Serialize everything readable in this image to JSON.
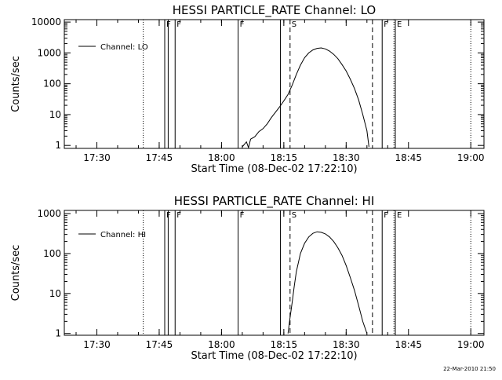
{
  "footer": {
    "timestamp": "22-Mar-2010 21:50"
  },
  "chart_data": [
    {
      "type": "line",
      "title": "HESSI PARTICLE_RATE Channel: LO",
      "xlabel": "Start Time (08-Dec-02 17:22:10)",
      "ylabel": "Counts/sec",
      "yscale": "log",
      "xlim": [
        "17:22:10",
        "19:03:10"
      ],
      "ylim": [
        0.8,
        12000
      ],
      "xticks": [
        "17:30",
        "17:45",
        "18:00",
        "18:15",
        "18:30",
        "18:45",
        "19:00"
      ],
      "yticks": [
        "1",
        "10",
        "100",
        "1000",
        "10000"
      ],
      "legend": {
        "position": "top-left",
        "label": "Channel: LO"
      },
      "series": [
        {
          "name": "Channel: LO",
          "x": [
            "18:05:00",
            "18:06:00",
            "18:06:30",
            "18:07:00",
            "18:08:00",
            "18:09:00",
            "18:10:00",
            "18:11:00",
            "18:12:00",
            "18:13:00",
            "18:14:00",
            "18:15:00",
            "18:16:00",
            "18:17:00",
            "18:18:00",
            "18:19:00",
            "18:20:00",
            "18:21:00",
            "18:22:00",
            "18:23:00",
            "18:24:00",
            "18:25:00",
            "18:26:00",
            "18:27:00",
            "18:28:00",
            "18:29:00",
            "18:30:00",
            "18:31:00",
            "18:32:00",
            "18:33:00",
            "18:34:00",
            "18:35:00",
            "18:35:30"
          ],
          "y": [
            0.9,
            1.3,
            0.85,
            1.6,
            1.9,
            2.8,
            3.5,
            5,
            8,
            12,
            18,
            28,
            45,
            90,
            200,
            400,
            700,
            1000,
            1250,
            1400,
            1450,
            1350,
            1150,
            900,
            650,
            420,
            260,
            140,
            70,
            30,
            10,
            3,
            0.9
          ]
        }
      ],
      "markers": [
        {
          "time": "17:41:10",
          "style": "dotted",
          "label": ""
        },
        {
          "time": "17:46:20",
          "style": "solid",
          "label": "F"
        },
        {
          "time": "17:47:10",
          "style": "solid",
          "label": ""
        },
        {
          "time": "17:48:50",
          "style": "solid",
          "label": "F"
        },
        {
          "time": "18:04:00",
          "style": "solid",
          "label": "F"
        },
        {
          "time": "18:14:10",
          "style": "solid",
          "label": ""
        },
        {
          "time": "18:16:30",
          "style": "dashed",
          "label": "S"
        },
        {
          "time": "18:36:20",
          "style": "dashed",
          "label": ""
        },
        {
          "time": "18:38:40",
          "style": "solid",
          "label": "F"
        },
        {
          "time": "18:41:50",
          "style": "solid",
          "label": "E"
        },
        {
          "time": "18:41:30",
          "style": "dotted",
          "label": ""
        },
        {
          "time": "19:00:00",
          "style": "dotted",
          "label": ""
        }
      ]
    },
    {
      "type": "line",
      "title": "HESSI PARTICLE_RATE Channel: HI",
      "xlabel": "Start Time (08-Dec-02 17:22:10)",
      "ylabel": "Counts/sec",
      "yscale": "log",
      "xlim": [
        "17:22:10",
        "19:03:10"
      ],
      "ylim": [
        0.9,
        1200
      ],
      "xticks": [
        "17:30",
        "17:45",
        "18:00",
        "18:15",
        "18:30",
        "18:45",
        "19:00"
      ],
      "yticks": [
        "1",
        "10",
        "100",
        "1000"
      ],
      "legend": {
        "position": "top-left",
        "label": "Channel: HI"
      },
      "series": [
        {
          "name": "Channel: HI",
          "x": [
            "18:16:00",
            "18:16:30",
            "18:17:00",
            "18:17:30",
            "18:18:00",
            "18:19:00",
            "18:20:00",
            "18:21:00",
            "18:22:00",
            "18:23:00",
            "18:24:00",
            "18:25:00",
            "18:26:00",
            "18:27:00",
            "18:28:00",
            "18:29:00",
            "18:30:00",
            "18:31:00",
            "18:32:00",
            "18:33:00",
            "18:34:00",
            "18:35:00"
          ],
          "y": [
            1.0,
            2.5,
            6,
            15,
            35,
            100,
            180,
            260,
            320,
            350,
            340,
            310,
            260,
            200,
            140,
            90,
            50,
            25,
            12,
            5,
            2,
            1.0
          ]
        }
      ],
      "markers": [
        {
          "time": "17:41:10",
          "style": "dotted",
          "label": ""
        },
        {
          "time": "17:46:20",
          "style": "solid",
          "label": "F"
        },
        {
          "time": "17:47:10",
          "style": "solid",
          "label": ""
        },
        {
          "time": "17:48:50",
          "style": "solid",
          "label": "F"
        },
        {
          "time": "18:04:00",
          "style": "solid",
          "label": "F"
        },
        {
          "time": "18:14:10",
          "style": "solid",
          "label": ""
        },
        {
          "time": "18:16:30",
          "style": "dashed",
          "label": "S"
        },
        {
          "time": "18:36:20",
          "style": "dashed",
          "label": ""
        },
        {
          "time": "18:38:40",
          "style": "solid",
          "label": "F"
        },
        {
          "time": "18:41:50",
          "style": "solid",
          "label": "E"
        },
        {
          "time": "18:41:30",
          "style": "dotted",
          "label": ""
        },
        {
          "time": "19:00:00",
          "style": "dotted",
          "label": ""
        }
      ]
    }
  ]
}
